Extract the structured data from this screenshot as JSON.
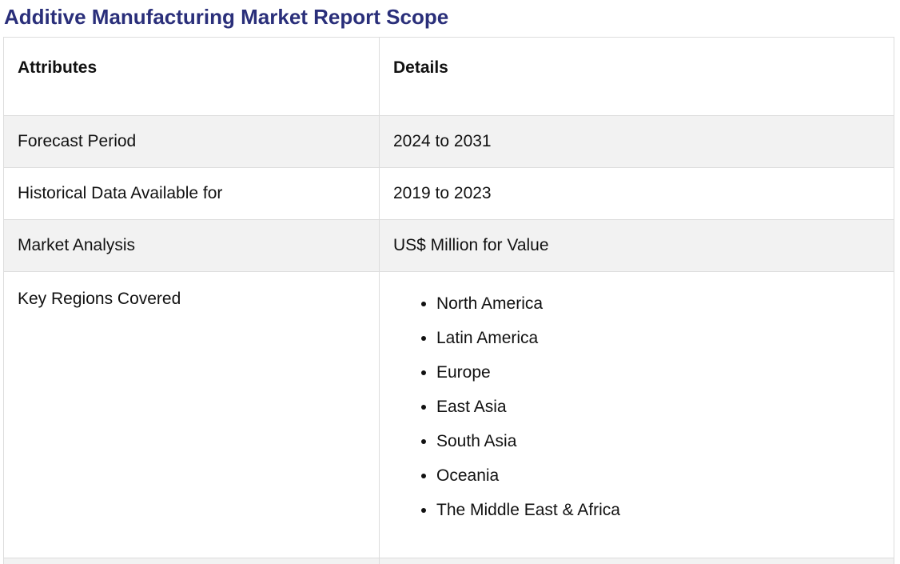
{
  "title": "Additive Manufacturing Market Report Scope",
  "table": {
    "headers": [
      "Attributes",
      "Details"
    ],
    "rows": [
      {
        "attribute": "Forecast Period",
        "detail": "2024 to 2031"
      },
      {
        "attribute": "Historical Data Available for",
        "detail": "2019 to 2023"
      },
      {
        "attribute": "Market Analysis",
        "detail": "US$ Million for Value"
      }
    ],
    "regions": {
      "attribute": "Key Regions Covered",
      "items": [
        "North America",
        "Latin America",
        "Europe",
        "East Asia",
        "South Asia",
        "Oceania",
        "The Middle East & Africa"
      ]
    }
  }
}
